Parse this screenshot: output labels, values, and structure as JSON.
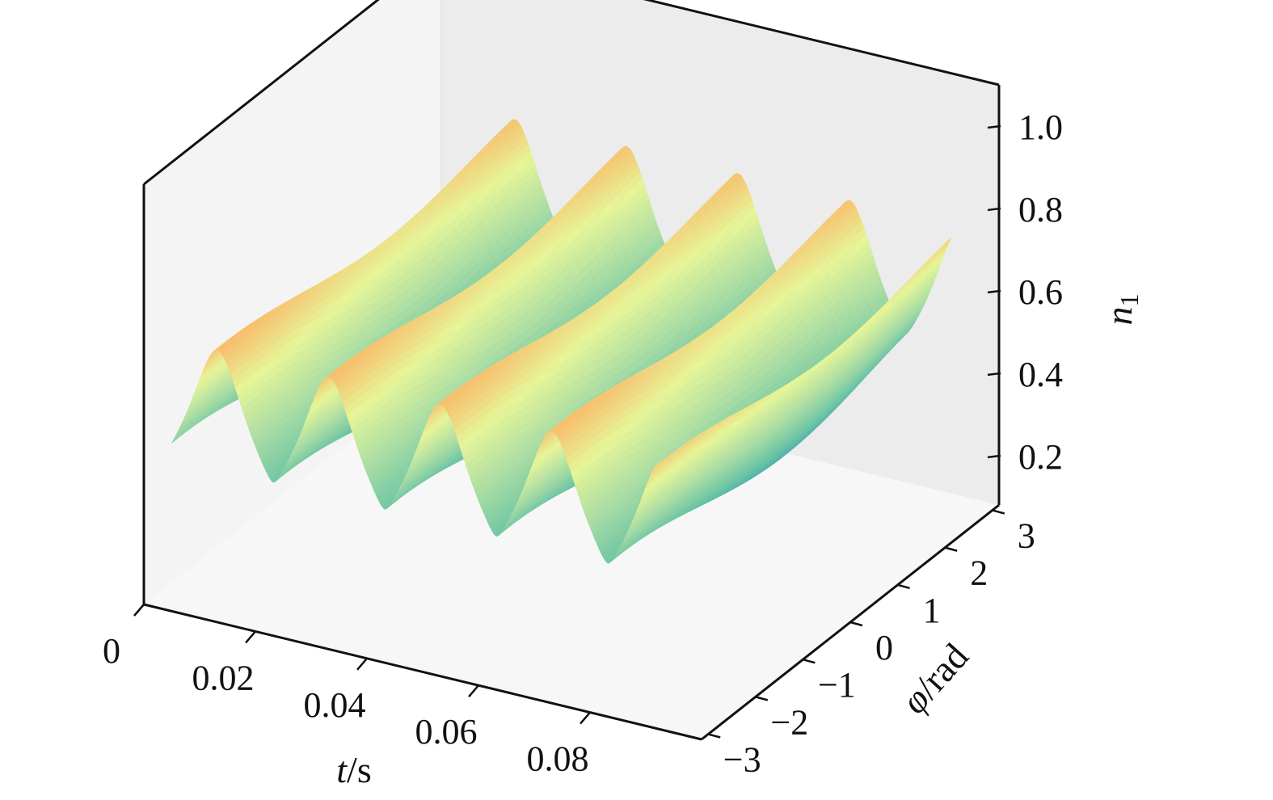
{
  "chart_data": {
    "type": "surface",
    "title": "",
    "colormap": "rainbow (blue low → red high)",
    "x": {
      "label_italic": "t",
      "label_rest": "/s",
      "ticks": [
        0,
        0.02,
        0.04,
        0.06,
        0.08
      ],
      "tick_labels": [
        "0",
        "0.02",
        "0.04",
        "0.06",
        "0.08"
      ],
      "range": [
        0,
        0.1
      ]
    },
    "y": {
      "label_italic": "φ",
      "label_rest": "/rad",
      "ticks": [
        -3,
        -2,
        -1,
        0,
        1,
        2,
        3
      ],
      "tick_labels": [
        "−3",
        "−2",
        "−1",
        "0",
        "1",
        "2",
        "3"
      ],
      "range": [
        -3.14,
        3.14
      ]
    },
    "z": {
      "label_italic": "n",
      "label_sub": "1",
      "ticks": [
        0.2,
        0.4,
        0.6,
        0.8,
        1.0
      ],
      "tick_labels": [
        "0.2",
        "0.4",
        "0.6",
        "0.8",
        "1.0"
      ],
      "range": [
        0.08,
        1.1
      ]
    },
    "surface": {
      "periods_visible": 5,
      "period_s": 0.02,
      "min_value": 0.12,
      "max_value": 1.0
    }
  }
}
